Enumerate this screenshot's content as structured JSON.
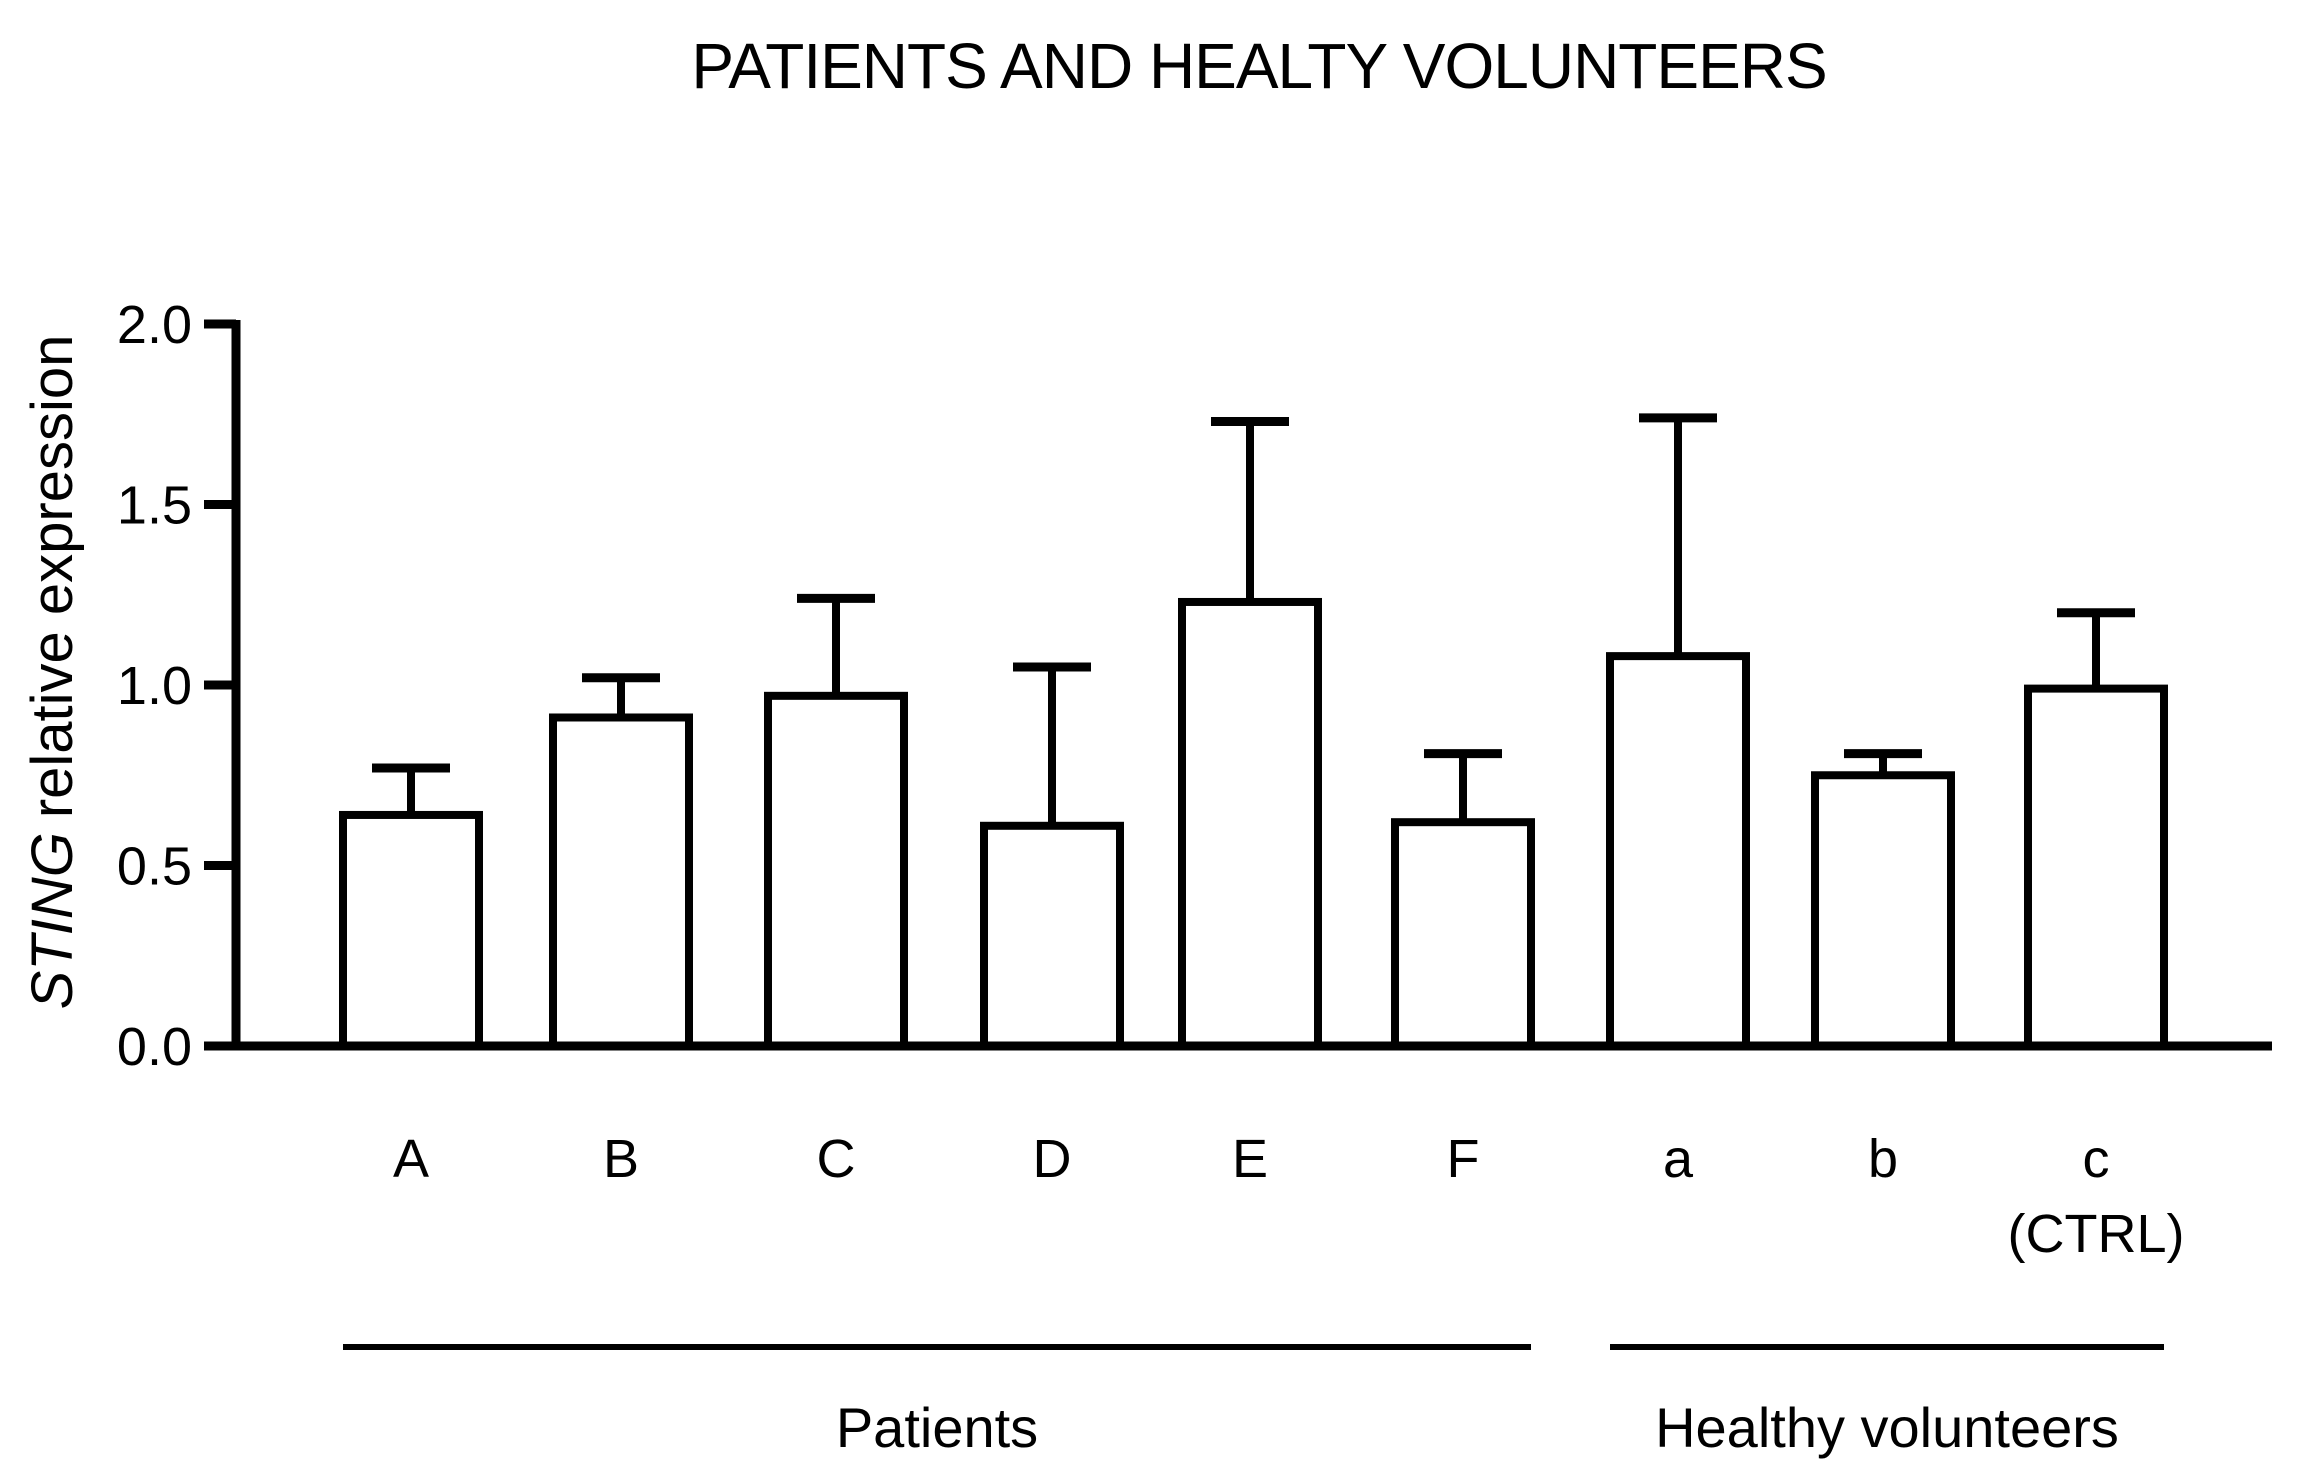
{
  "figure": {
    "background": "#ffffff",
    "text_color": "#000000"
  },
  "chart_data": {
    "type": "bar",
    "title": "PATIENTS AND HEALTY VOLUNTEERS",
    "ylabel": "STING relative expression",
    "ylabel_italic": "STING",
    "ylabel_regular": "relative expression",
    "xlabel": "",
    "categories": [
      "A",
      "B",
      "C",
      "D",
      "E",
      "F",
      "a",
      "b",
      "c"
    ],
    "sublabels": [
      "",
      "",
      "",
      "",
      "",
      "",
      "",
      "",
      "(CTRL)"
    ],
    "values": [
      0.64,
      0.91,
      0.97,
      0.61,
      1.23,
      0.62,
      1.08,
      0.75,
      0.99
    ],
    "error_plus": [
      0.13,
      0.11,
      0.27,
      0.44,
      0.5,
      0.19,
      0.66,
      0.06,
      0.21
    ],
    "ylim": [
      0,
      2
    ],
    "yticks": [
      2.0,
      1.5,
      1.0,
      0.5,
      0.0
    ],
    "ytick_labels": [
      "2.0",
      "1.5",
      "1.0",
      "0.5",
      "0.0"
    ],
    "grid": false,
    "legend": false,
    "bar_fill": "#ffffff",
    "bar_stroke": "#000000",
    "axis_color": "#000000",
    "groups": [
      {
        "label": "Patients",
        "start_index": 0,
        "end_index": 5
      },
      {
        "label": "Healthy volunteers",
        "start_index": 6,
        "end_index": 8
      }
    ]
  }
}
